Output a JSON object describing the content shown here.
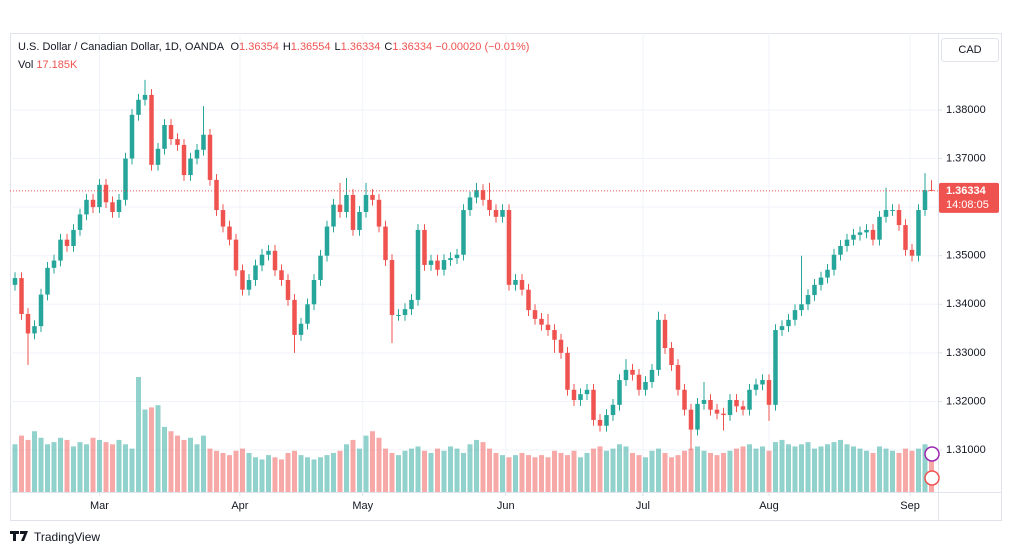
{
  "chart_data": {
    "type": "candlestick",
    "title": "U.S. Dollar / Canadian Dollar, 1D, OANDA",
    "ohlc_header": [
      {
        "key": "O",
        "value": "1.36354"
      },
      {
        "key": "H",
        "value": "1.36554"
      },
      {
        "key": "L",
        "value": "1.36334"
      },
      {
        "key": "C",
        "value": "1.36334"
      }
    ],
    "change": "−0.00020 (−0.01%)",
    "volume_label": "Vol",
    "volume_value": "17.185K",
    "currency": "CAD",
    "last_price_label": "1.36334",
    "countdown": "14:08:05",
    "brand": "TradingView",
    "up_color": "#26a69a",
    "down_color": "#ef5350",
    "grid": true,
    "ylim": [
      1.30136,
      1.39584
    ],
    "yticks": [
      {
        "value": 1.31,
        "label": "1.31000"
      },
      {
        "value": 1.32,
        "label": "1.32000"
      },
      {
        "value": 1.33,
        "label": "1.33000"
      },
      {
        "value": 1.34,
        "label": "1.34000"
      },
      {
        "value": 1.35,
        "label": "1.35000"
      },
      {
        "value": 1.36,
        "label": "1.36000"
      },
      {
        "value": 1.37,
        "label": "1.37000"
      },
      {
        "value": 1.38,
        "label": "1.38000"
      }
    ],
    "xticks": [
      {
        "value": 13,
        "label": "Mar"
      },
      {
        "value": 34.6,
        "label": "Apr"
      },
      {
        "value": 53.5,
        "label": "May"
      },
      {
        "value": 75.5,
        "label": "Jun"
      },
      {
        "value": 96.6,
        "label": "Jul"
      },
      {
        "value": 116,
        "label": "Aug"
      },
      {
        "value": 137.7,
        "label": "Sep"
      }
    ],
    "open": [
      1.344,
      1.3454,
      1.338,
      1.334,
      1.3355,
      1.342,
      1.3475,
      1.349,
      1.3533,
      1.352,
      1.3553,
      1.3585,
      1.3615,
      1.36,
      1.3646,
      1.361,
      1.359,
      1.3615,
      1.37,
      1.379,
      1.3821,
      1.3831,
      1.3687,
      1.372,
      1.3769,
      1.374,
      1.3728,
      1.3666,
      1.37,
      1.3718,
      1.3749,
      1.3656,
      1.3594,
      1.356,
      1.3533,
      1.347,
      1.343,
      1.345,
      1.348,
      1.3502,
      1.351,
      1.347,
      1.345,
      1.3409,
      1.3337,
      1.336,
      1.34,
      1.345,
      1.35,
      1.356,
      1.3605,
      1.359,
      1.3625,
      1.3553,
      1.359,
      1.3625,
      1.3615,
      1.356,
      1.3491,
      1.3378,
      1.3378,
      1.339,
      1.3409,
      1.3553,
      1.3481,
      1.349,
      1.3471,
      1.3491,
      1.3495,
      1.3502,
      1.3594,
      1.362,
      1.3635,
      1.3615,
      1.3594,
      1.358,
      1.3594,
      1.344,
      1.345,
      1.343,
      1.3388,
      1.337,
      1.3358,
      1.3347,
      1.3327,
      1.33,
      1.3224,
      1.3203,
      1.3215,
      1.3224,
      1.3162,
      1.315,
      1.3172,
      1.3193,
      1.3244,
      1.3265,
      1.3255,
      1.3224,
      1.324,
      1.3265,
      1.3368,
      1.331,
      1.3275,
      1.3224,
      1.3183,
      1.3142,
      1.3195,
      1.3203,
      1.3183,
      1.3175,
      1.3172,
      1.3203,
      1.319,
      1.3183,
      1.3224,
      1.3235,
      1.3244,
      1.3193,
      1.3347,
      1.3355,
      1.3368,
      1.3388,
      1.34,
      1.3419,
      1.344,
      1.3455,
      1.3471,
      1.3502,
      1.352,
      1.3533,
      1.3543,
      1.3548,
      1.3553,
      1.3533,
      1.358,
      1.3594,
      1.3594,
      1.3563,
      1.3512,
      1.35,
      1.3594,
      1.36354
    ],
    "high": [
      1.3466,
      1.3466,
      1.3392,
      1.3367,
      1.3432,
      1.3487,
      1.3502,
      1.3545,
      1.3545,
      1.3565,
      1.3597,
      1.3627,
      1.3627,
      1.3658,
      1.3658,
      1.3622,
      1.3627,
      1.3712,
      1.3802,
      1.3833,
      1.3862,
      1.3843,
      1.3732,
      1.3781,
      1.3781,
      1.3752,
      1.374,
      1.3712,
      1.373,
      1.3808,
      1.3761,
      1.3668,
      1.3606,
      1.3572,
      1.3545,
      1.3482,
      1.3462,
      1.3492,
      1.3514,
      1.3522,
      1.3522,
      1.3482,
      1.3462,
      1.3421,
      1.3372,
      1.3412,
      1.3462,
      1.3512,
      1.3572,
      1.3617,
      1.365,
      1.366,
      1.3637,
      1.3602,
      1.365,
      1.3637,
      1.3627,
      1.3572,
      1.3503,
      1.339,
      1.3402,
      1.3421,
      1.3565,
      1.3565,
      1.3502,
      1.3502,
      1.3503,
      1.3507,
      1.3514,
      1.3606,
      1.3632,
      1.365,
      1.3647,
      1.365,
      1.3606,
      1.3606,
      1.3606,
      1.3462,
      1.3462,
      1.3442,
      1.34,
      1.3382,
      1.338,
      1.3359,
      1.3339,
      1.3312,
      1.3236,
      1.3227,
      1.3236,
      1.3236,
      1.3174,
      1.3184,
      1.3205,
      1.3256,
      1.3287,
      1.3277,
      1.3267,
      1.3252,
      1.3277,
      1.3385,
      1.338,
      1.3322,
      1.3287,
      1.3236,
      1.3195,
      1.3207,
      1.324,
      1.3215,
      1.3195,
      1.3187,
      1.3215,
      1.3215,
      1.3202,
      1.3236,
      1.3247,
      1.3256,
      1.3256,
      1.3359,
      1.3367,
      1.338,
      1.34,
      1.35,
      1.3431,
      1.3452,
      1.3467,
      1.3483,
      1.3514,
      1.3532,
      1.3545,
      1.3555,
      1.356,
      1.3565,
      1.3565,
      1.3592,
      1.364,
      1.3606,
      1.3606,
      1.3575,
      1.3524,
      1.3606,
      1.367,
      1.36554
    ],
    "low": [
      1.3428,
      1.3368,
      1.3275,
      1.3328,
      1.3343,
      1.3408,
      1.3463,
      1.3478,
      1.3508,
      1.3508,
      1.3541,
      1.3573,
      1.3588,
      1.3588,
      1.3598,
      1.3578,
      1.3578,
      1.3603,
      1.3688,
      1.3778,
      1.3809,
      1.3675,
      1.3675,
      1.3708,
      1.3728,
      1.3716,
      1.3654,
      1.3654,
      1.3688,
      1.3706,
      1.3644,
      1.3582,
      1.3548,
      1.3521,
      1.3458,
      1.3418,
      1.3418,
      1.3438,
      1.3468,
      1.349,
      1.3458,
      1.3438,
      1.3397,
      1.33,
      1.3325,
      1.3348,
      1.3388,
      1.3438,
      1.3488,
      1.3548,
      1.3578,
      1.3578,
      1.3541,
      1.3541,
      1.3578,
      1.3603,
      1.3548,
      1.3479,
      1.332,
      1.3366,
      1.3366,
      1.3378,
      1.3397,
      1.3469,
      1.3469,
      1.3459,
      1.3459,
      1.3479,
      1.3483,
      1.349,
      1.3582,
      1.3608,
      1.3603,
      1.3582,
      1.3568,
      1.3568,
      1.3428,
      1.3428,
      1.3418,
      1.3376,
      1.3358,
      1.3346,
      1.3335,
      1.33,
      1.3288,
      1.3212,
      1.3191,
      1.3191,
      1.3203,
      1.315,
      1.3138,
      1.3138,
      1.316,
      1.3181,
      1.3232,
      1.3243,
      1.3212,
      1.3212,
      1.3228,
      1.3253,
      1.3298,
      1.3263,
      1.3212,
      1.3171,
      1.31,
      1.313,
      1.3183,
      1.3171,
      1.3163,
      1.314,
      1.316,
      1.3178,
      1.3171,
      1.3171,
      1.3212,
      1.3223,
      1.316,
      1.3181,
      1.3335,
      1.3343,
      1.3356,
      1.3376,
      1.3388,
      1.3407,
      1.3428,
      1.3443,
      1.3459,
      1.349,
      1.3508,
      1.3521,
      1.3531,
      1.3536,
      1.3521,
      1.3521,
      1.3568,
      1.3582,
      1.3551,
      1.35,
      1.3488,
      1.3488,
      1.3582,
      1.36334
    ],
    "close": [
      1.3454,
      1.338,
      1.334,
      1.3355,
      1.342,
      1.3475,
      1.349,
      1.3533,
      1.352,
      1.3553,
      1.3585,
      1.3615,
      1.36,
      1.3646,
      1.361,
      1.359,
      1.3615,
      1.37,
      1.379,
      1.3821,
      1.3831,
      1.3687,
      1.372,
      1.3769,
      1.374,
      1.3728,
      1.3666,
      1.37,
      1.3718,
      1.3749,
      1.3656,
      1.3594,
      1.356,
      1.3533,
      1.347,
      1.343,
      1.345,
      1.348,
      1.3502,
      1.351,
      1.347,
      1.345,
      1.3409,
      1.3337,
      1.336,
      1.34,
      1.345,
      1.35,
      1.356,
      1.3605,
      1.359,
      1.3625,
      1.3553,
      1.359,
      1.3625,
      1.3615,
      1.356,
      1.3491,
      1.3378,
      1.3378,
      1.339,
      1.3409,
      1.3553,
      1.3481,
      1.349,
      1.3471,
      1.3491,
      1.3495,
      1.3502,
      1.3594,
      1.362,
      1.3635,
      1.3615,
      1.3594,
      1.358,
      1.3594,
      1.344,
      1.345,
      1.343,
      1.3388,
      1.337,
      1.3358,
      1.3347,
      1.3327,
      1.33,
      1.3224,
      1.3203,
      1.3215,
      1.3224,
      1.3162,
      1.315,
      1.3172,
      1.3193,
      1.3244,
      1.3265,
      1.3255,
      1.3224,
      1.324,
      1.3265,
      1.3368,
      1.331,
      1.3275,
      1.3224,
      1.3183,
      1.3142,
      1.3195,
      1.3203,
      1.3183,
      1.3175,
      1.3172,
      1.3203,
      1.319,
      1.3183,
      1.3224,
      1.3235,
      1.3244,
      1.3193,
      1.3347,
      1.3355,
      1.3368,
      1.3388,
      1.34,
      1.3419,
      1.344,
      1.3455,
      1.3471,
      1.3502,
      1.352,
      1.3533,
      1.3543,
      1.3548,
      1.3553,
      1.3533,
      1.358,
      1.3594,
      1.3594,
      1.3563,
      1.3512,
      1.35,
      1.3594,
      1.3635,
      1.36334
    ],
    "volume": [
      22000,
      26000,
      24000,
      28000,
      25000,
      22000,
      23000,
      25000,
      24000,
      21000,
      23000,
      22000,
      25000,
      24000,
      23000,
      22000,
      24000,
      22000,
      20000,
      53000,
      38000,
      39000,
      40000,
      30000,
      28000,
      26000,
      24000,
      25000,
      22000,
      26000,
      20000,
      19000,
      18000,
      17000,
      19000,
      20000,
      18000,
      16000,
      15000,
      17000,
      16000,
      15000,
      18000,
      19000,
      17000,
      16000,
      15000,
      16000,
      17000,
      18000,
      19000,
      22000,
      24000,
      20000,
      26000,
      28000,
      25000,
      20000,
      18000,
      17000,
      19000,
      20000,
      21000,
      19000,
      18000,
      20000,
      19000,
      21000,
      20000,
      18000,
      22000,
      24000,
      23000,
      20000,
      18000,
      17000,
      16000,
      17000,
      18000,
      17000,
      16000,
      17000,
      16000,
      19000,
      18000,
      17000,
      19000,
      16000,
      18000,
      20000,
      21000,
      19000,
      20000,
      22000,
      21000,
      18000,
      17000,
      16000,
      19000,
      20000,
      18000,
      16000,
      17000,
      19000,
      20000,
      21000,
      19000,
      18000,
      17000,
      18000,
      19000,
      20000,
      21000,
      22000,
      20000,
      21000,
      19000,
      23000,
      24000,
      22000,
      21000,
      22000,
      23000,
      20000,
      21000,
      22000,
      23000,
      24000,
      22000,
      21000,
      20000,
      19000,
      18000,
      21000,
      20000,
      19000,
      18000,
      20000,
      19000,
      20000,
      22000,
      17185
    ]
  }
}
